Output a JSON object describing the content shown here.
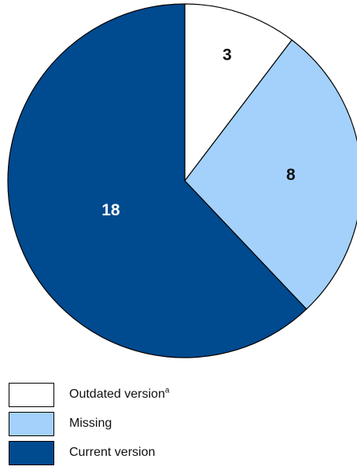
{
  "chart_data": {
    "type": "pie",
    "title": "",
    "slices": [
      {
        "name": "Outdated version",
        "note": "a",
        "value": 3,
        "label": "3",
        "color": "#ffffff",
        "label_color": "#111111"
      },
      {
        "name": "Missing",
        "note": "",
        "value": 8,
        "label": "8",
        "color": "#a3d1fb",
        "label_color": "#111111"
      },
      {
        "name": "Current version",
        "note": "",
        "value": 18,
        "label": "18",
        "color": "#004a8f",
        "label_color": "#ffffff"
      }
    ],
    "start": "top",
    "direction": "clockwise",
    "legend": "bottom-left"
  }
}
